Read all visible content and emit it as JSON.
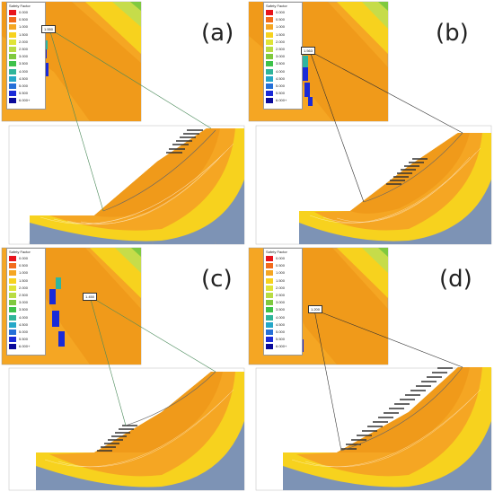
{
  "panels": [
    {
      "label": "(a)",
      "fs": "1.550"
    },
    {
      "label": "(b)",
      "fs": "1.563"
    },
    {
      "label": "(c)",
      "fs": "1.450"
    },
    {
      "label": "(d)",
      "fs": "1.200"
    }
  ],
  "legend": {
    "title": "Safety Factor",
    "levels": [
      "0.000",
      "0.500",
      "1.000",
      "1.500",
      "2.000",
      "2.500",
      "3.000",
      "3.500",
      "4.000",
      "4.500",
      "5.000",
      "5.500",
      "6.000+"
    ]
  },
  "colors": {
    "slope_orange": "#f5a623",
    "slope_yellow": "#f7d21e",
    "slope_light": "#e8e85a",
    "base_blue": "#7d93b5",
    "anchor": "#444444"
  }
}
